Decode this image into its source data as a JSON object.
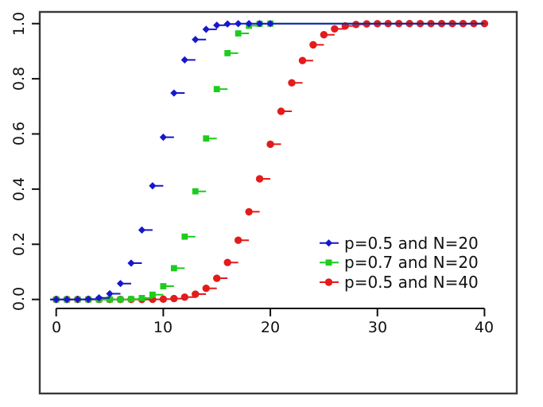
{
  "chart_data": {
    "type": "line",
    "subtype": "step-cdf-binomial",
    "title": "",
    "xlabel": "",
    "ylabel": "",
    "xlim": [
      0,
      40
    ],
    "ylim": [
      0.0,
      1.0
    ],
    "grid": false,
    "frame_color": "#3a3a3a",
    "axis_color": "#111111",
    "x_ticks": [
      0,
      10,
      20,
      30,
      40
    ],
    "x_tick_labels": [
      "0",
      "10",
      "20",
      "30",
      "40"
    ],
    "y_ticks": [
      0.0,
      0.2,
      0.4,
      0.6,
      0.8,
      1.0
    ],
    "y_tick_labels": [
      "0.0",
      "0.2",
      "0.4",
      "0.6",
      "0.8",
      "1.0"
    ],
    "x_values_are_integers_from_zero": true,
    "legend": {
      "position": "bottom-right"
    },
    "series": [
      {
        "name": "p=0.5 and N=20",
        "color": "#1717cc",
        "marker": "diamond",
        "values": [
          0.0,
          0.0,
          0.0002,
          0.0013,
          0.0059,
          0.0207,
          0.0577,
          0.1316,
          0.2517,
          0.4119,
          0.5881,
          0.7483,
          0.8684,
          0.9423,
          0.9793,
          0.9941,
          0.9987,
          0.9998,
          1.0,
          1.0,
          1.0
        ]
      },
      {
        "name": "p=0.7 and N=20",
        "color": "#1dcc1d",
        "marker": "square",
        "values": [
          0.0,
          0.0,
          0.0,
          0.0,
          0.0,
          0.0,
          0.0001,
          0.0013,
          0.0051,
          0.0171,
          0.048,
          0.1133,
          0.2277,
          0.392,
          0.5836,
          0.7625,
          0.8929,
          0.9645,
          0.9924,
          0.9992,
          1.0
        ]
      },
      {
        "name": "p=0.5 and N=40",
        "color": "#e31b1b",
        "marker": "circle",
        "values": [
          0.0,
          0.0,
          0.0,
          0.0,
          0.0,
          0.0,
          0.0,
          0.0,
          0.0001,
          0.0003,
          0.0011,
          0.0032,
          0.0083,
          0.0192,
          0.0403,
          0.0769,
          0.1341,
          0.2148,
          0.3179,
          0.4373,
          0.5627,
          0.6821,
          0.7852,
          0.8659,
          0.9231,
          0.9597,
          0.9808,
          0.9917,
          0.9968,
          0.9989,
          0.9997,
          0.9999,
          1.0,
          1.0,
          1.0,
          1.0,
          1.0,
          1.0,
          1.0,
          1.0,
          1.0
        ]
      }
    ]
  }
}
